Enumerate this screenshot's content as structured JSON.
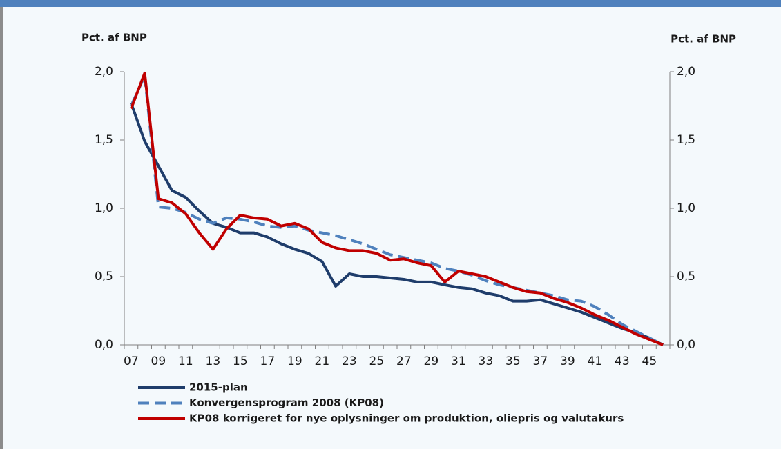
{
  "chart_data": {
    "type": "line",
    "y_label": "Pct. af BNP",
    "y2_label": "Pct. af BNP",
    "categories": [
      "07",
      null,
      "09",
      null,
      "11",
      null,
      "13",
      null,
      "15",
      null,
      "17",
      null,
      "19",
      null,
      "21",
      null,
      "23",
      null,
      "25",
      null,
      "27",
      null,
      "29",
      null,
      "31",
      null,
      "33",
      null,
      "35",
      null,
      "37",
      null,
      "39",
      null,
      "41",
      null,
      "43",
      null,
      "45",
      null
    ],
    "ylim": [
      0,
      2
    ],
    "yticks": [
      {
        "value": 0,
        "label": "0,0"
      },
      {
        "value": 0.5,
        "label": "0,5"
      },
      {
        "value": 1,
        "label": "1,0"
      },
      {
        "value": 1.5,
        "label": "1,5"
      },
      {
        "value": 2,
        "label": "2,0"
      }
    ],
    "y2lim": [
      0,
      2
    ],
    "y2ticks": [
      {
        "value": 0,
        "label": "0,0"
      },
      {
        "value": 0.5,
        "label": "0,5"
      },
      {
        "value": 1,
        "label": "1,0"
      },
      {
        "value": 1.5,
        "label": "1,5"
      },
      {
        "value": 2,
        "label": "2,0"
      }
    ],
    "series": [
      {
        "name": "2015-plan",
        "color": "#1f3d6b",
        "dash": false,
        "values": [
          1.77,
          1.49,
          1.31,
          1.13,
          1.08,
          0.98,
          0.89,
          0.86,
          0.82,
          0.82,
          0.79,
          0.74,
          0.7,
          0.67,
          0.61,
          0.43,
          0.52,
          0.5,
          0.5,
          0.49,
          0.48,
          0.46,
          0.46,
          0.44,
          0.42,
          0.41,
          0.38,
          0.36,
          0.32,
          0.32,
          0.33,
          0.3,
          0.27,
          0.24,
          0.2,
          0.16,
          0.12,
          0.09,
          0.05,
          0.0
        ]
      },
      {
        "name": "Konvergensprogram 2008 (KP08)",
        "color": "#4f81bd",
        "dash": true,
        "values": [
          1.75,
          1.97,
          1.01,
          1.0,
          0.97,
          0.92,
          0.89,
          0.93,
          0.92,
          0.9,
          0.87,
          0.86,
          0.87,
          0.84,
          0.82,
          0.8,
          0.77,
          0.74,
          0.7,
          0.66,
          0.64,
          0.62,
          0.6,
          0.56,
          0.54,
          0.51,
          0.47,
          0.44,
          0.42,
          0.4,
          0.38,
          0.36,
          0.33,
          0.32,
          0.28,
          0.22,
          0.15,
          0.1,
          0.05,
          0.0
        ]
      },
      {
        "name": "KP08 korrigeret for nye oplysninger om produktion, oliepris og valutakurs",
        "color": "#c00000",
        "dash": false,
        "values": [
          1.73,
          1.99,
          1.07,
          1.04,
          0.96,
          0.82,
          0.7,
          0.85,
          0.95,
          0.93,
          0.92,
          0.87,
          0.89,
          0.85,
          0.75,
          0.71,
          0.69,
          0.69,
          0.67,
          0.62,
          0.63,
          0.6,
          0.58,
          0.46,
          0.54,
          0.52,
          0.5,
          0.46,
          0.42,
          0.39,
          0.38,
          0.34,
          0.31,
          0.27,
          0.22,
          0.18,
          0.13,
          0.08,
          0.04,
          0.0
        ]
      }
    ]
  }
}
